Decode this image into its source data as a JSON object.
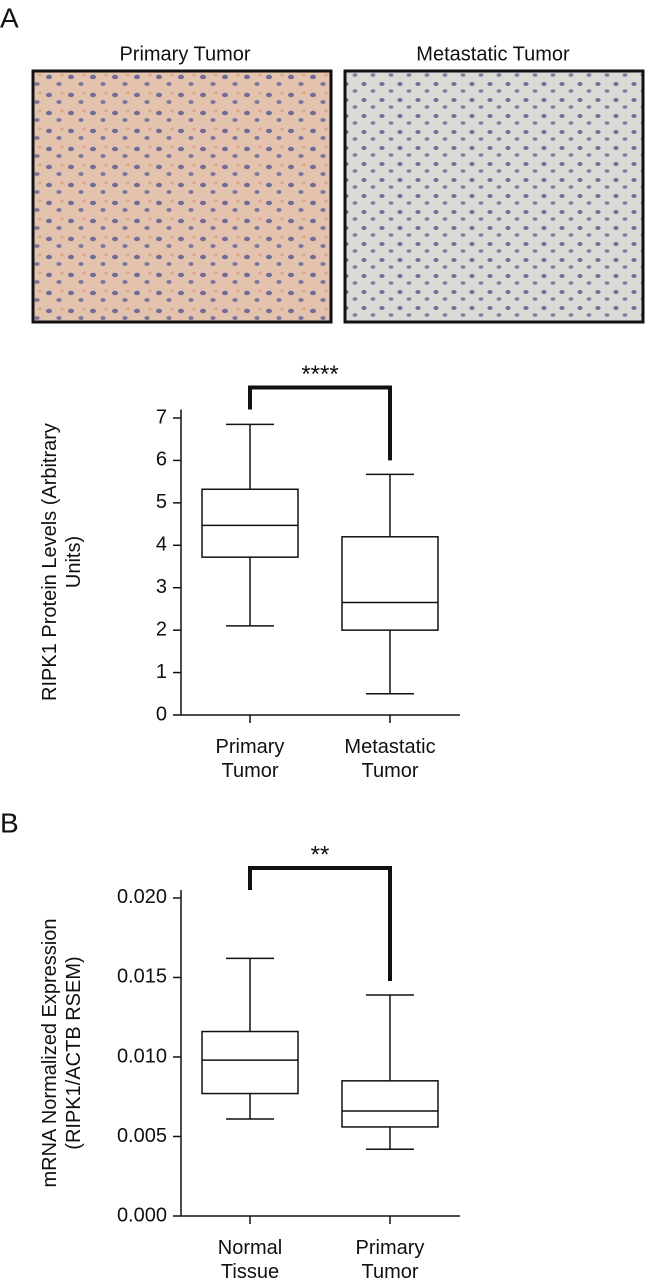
{
  "panel_labels": [
    "A",
    "B"
  ],
  "images": [
    {
      "title": "Primary Tumor"
    },
    {
      "title": "Metastatic Tumor"
    }
  ],
  "chart_data": [
    {
      "type": "box",
      "y_label": "RIPK1 Protein Levels (Arbitrary Units)",
      "categories": [
        "Primary Tumor",
        "Metastatic Tumor"
      ],
      "stats": [
        {
          "min": 2.1,
          "q1": 3.72,
          "median": 4.47,
          "q3": 5.32,
          "max": 6.85
        },
        {
          "min": 0.5,
          "q1": 2.0,
          "median": 2.65,
          "q3": 4.2,
          "max": 5.67
        }
      ],
      "annotation": "****",
      "ylim": [
        0,
        7.2
      ],
      "yticks": [
        0,
        1,
        2,
        3,
        4,
        5,
        6,
        7
      ]
    },
    {
      "type": "box",
      "y_label": "mRNA Normalized Expression (RIPK1/ACTB RSEM)",
      "categories": [
        "Normal Tissue",
        "Primary Tumor"
      ],
      "stats": [
        {
          "min": 0.0061,
          "q1": 0.0077,
          "median": 0.0098,
          "q3": 0.0116,
          "max": 0.0162
        },
        {
          "min": 0.0042,
          "q1": 0.0056,
          "median": 0.0066,
          "q3": 0.0085,
          "max": 0.0139
        }
      ],
      "annotation": "**",
      "ylim": [
        0,
        0.0205
      ],
      "yticks": [
        {
          "value": 0,
          "label": "0.000"
        },
        {
          "value": 0.005,
          "label": "0.005"
        },
        {
          "value": 0.01,
          "label": "0.010"
        },
        {
          "value": 0.015,
          "label": "0.015"
        },
        {
          "value": 0.02,
          "label": "0.020"
        }
      ]
    }
  ]
}
